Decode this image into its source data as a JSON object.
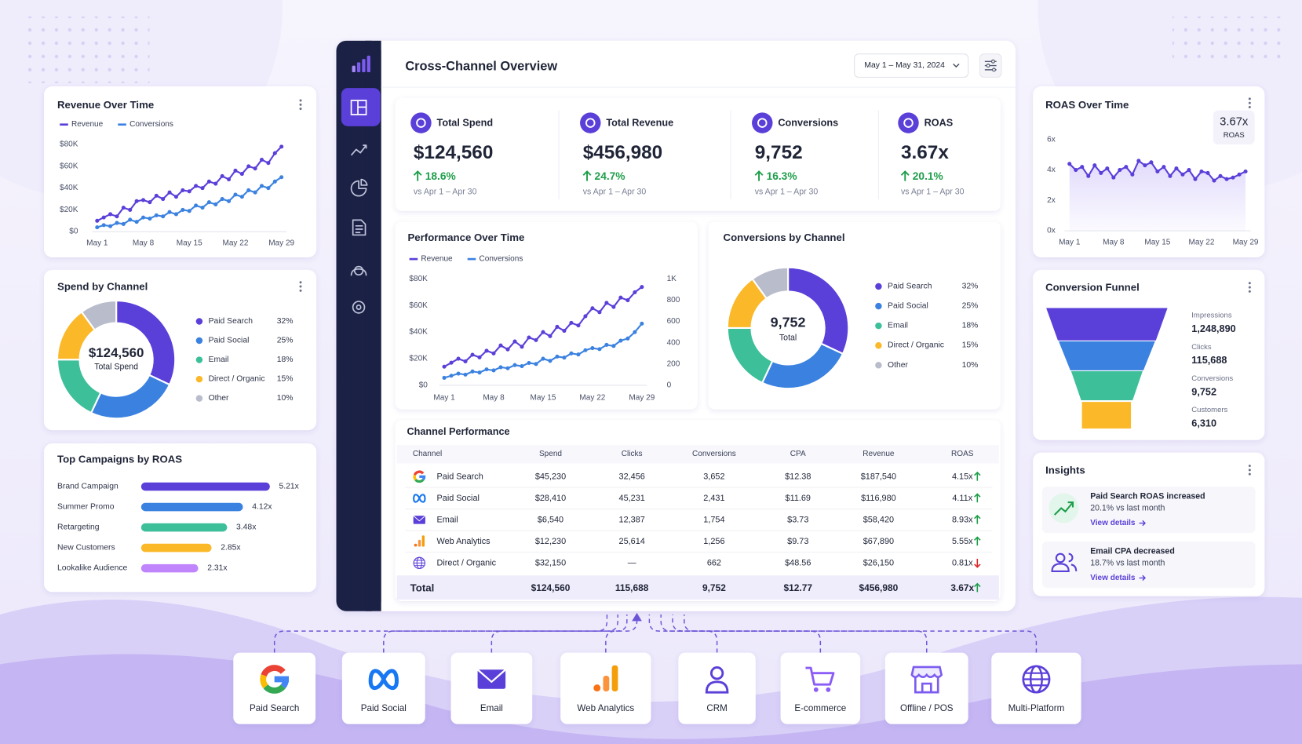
{
  "header": {
    "title": "Cross-Channel Overview",
    "date_range": "May 1 – May 31, 2024"
  },
  "kpis": [
    {
      "label": "Total Spend",
      "value": "$124,560",
      "change": "18.6%",
      "compare": "vs Apr 1 – Apr 30"
    },
    {
      "label": "Total Revenue",
      "value": "$456,980",
      "change": "24.7%",
      "compare": "vs Apr 1 – Apr 30"
    },
    {
      "label": "Conversions",
      "value": "9,752",
      "change": "16.3%",
      "compare": "vs Apr 1 – Apr 30"
    },
    {
      "label": "ROAS",
      "value": "3.67x",
      "change": "20.1%",
      "compare": "vs Apr 1 – Apr 30"
    }
  ],
  "chart_data": [
    {
      "type": "line",
      "title": "Revenue Over Time",
      "categories": [
        "May 1",
        null,
        null,
        null,
        null,
        null,
        null,
        "May 8",
        null,
        null,
        null,
        null,
        null,
        null,
        "May 15",
        null,
        null,
        null,
        null,
        null,
        null,
        "May 22",
        null,
        null,
        null,
        null,
        null,
        null,
        "May 29"
      ],
      "series": [
        {
          "name": "Revenue",
          "color": "#5b3fd9",
          "values": [
            10000,
            13000,
            16000,
            14000,
            22000,
            20000,
            28000,
            29000,
            27000,
            33000,
            30000,
            36000,
            32000,
            38000,
            37000,
            42000,
            40000,
            46000,
            44000,
            51000,
            48000,
            56000,
            53000,
            60000,
            58000,
            66000,
            63000,
            72000,
            78000
          ]
        },
        {
          "name": "Conversions",
          "color": "#3b82e0",
          "values": [
            4000,
            6000,
            5000,
            8000,
            7000,
            11000,
            9000,
            13000,
            12000,
            15000,
            14000,
            18000,
            16000,
            20000,
            19000,
            24000,
            22000,
            27000,
            25000,
            30000,
            28000,
            34000,
            32000,
            38000,
            36000,
            42000,
            40000,
            46000,
            50000
          ]
        }
      ],
      "ylim": [
        0,
        80000
      ],
      "yticks": [
        {
          "value": 0,
          "label": "$0"
        },
        {
          "value": 20000,
          "label": "$20K"
        },
        {
          "value": 40000,
          "label": "$40K"
        },
        {
          "value": 60000,
          "label": "$60K"
        },
        {
          "value": 80000,
          "label": "$80K"
        }
      ],
      "grid": false
    },
    {
      "type": "donut",
      "title": "Spend by Channel",
      "center_value": "$124,560",
      "center_label": "Total Spend",
      "categories": [
        "Paid Search",
        "Paid Social",
        "Email",
        "Direct / Organic",
        "Other"
      ],
      "values": [
        32,
        25,
        18,
        15,
        10
      ],
      "value_labels": [
        "32%",
        "25%",
        "18%",
        "15%",
        "10%"
      ],
      "colors": [
        "#5b3fd9",
        "#3b82e0",
        "#3dbf9a",
        "#fbb829",
        "#b9bccb"
      ]
    },
    {
      "type": "hbar",
      "title": "Top Campaigns by ROAS",
      "categories": [
        "Brand Campaign",
        "Summer Promo",
        "Retargeting",
        "New Customers",
        "Lookalike Audience"
      ],
      "values": [
        5.21,
        4.12,
        3.48,
        2.85,
        2.31
      ],
      "value_labels": [
        "5.21x",
        "4.12x",
        "3.48x",
        "2.85x",
        "2.31x"
      ],
      "colors": [
        "#5b3fd9",
        "#3b82e0",
        "#3dbf9a",
        "#fbb829",
        "#c084fc"
      ]
    },
    {
      "type": "line",
      "title": "Performance Over Time",
      "categories": [
        "May 1",
        null,
        null,
        null,
        null,
        null,
        null,
        "May 8",
        null,
        null,
        null,
        null,
        null,
        null,
        "May 15",
        null,
        null,
        null,
        null,
        null,
        null,
        "May 22",
        null,
        null,
        null,
        null,
        null,
        null,
        "May 29"
      ],
      "series": [
        {
          "name": "Revenue",
          "color": "#5b3fd9",
          "values": [
            14000,
            17000,
            20000,
            18000,
            23000,
            21000,
            26000,
            24000,
            30000,
            27000,
            33000,
            29000,
            36000,
            34000,
            40000,
            37000,
            44000,
            41000,
            47000,
            45000,
            52000,
            58000,
            55000,
            62000,
            59000,
            66000,
            64000,
            70000,
            74000
          ]
        },
        {
          "name": "Conversions",
          "color": "#3b82e0",
          "axis": "y2",
          "values": [
            70,
            90,
            110,
            100,
            130,
            120,
            150,
            140,
            170,
            160,
            190,
            180,
            210,
            200,
            250,
            230,
            270,
            260,
            300,
            290,
            330,
            350,
            340,
            380,
            370,
            420,
            440,
            500,
            580
          ]
        }
      ],
      "ylim": [
        0,
        80000
      ],
      "yticks": [
        {
          "value": 0,
          "label": "$0"
        },
        {
          "value": 20000,
          "label": "$20K"
        },
        {
          "value": 40000,
          "label": "$40K"
        },
        {
          "value": 60000,
          "label": "$60K"
        },
        {
          "value": 80000,
          "label": "$80K"
        }
      ],
      "y2lim": [
        0,
        1000
      ],
      "y2ticks": [
        0,
        200,
        400,
        600,
        800,
        {
          "value": 1000,
          "label": "1K"
        }
      ],
      "grid": false
    },
    {
      "type": "donut",
      "title": "Conversions by Channel",
      "center_value": "9,752",
      "center_label": "Total",
      "categories": [
        "Paid Search",
        "Paid Social",
        "Email",
        "Direct / Organic",
        "Other"
      ],
      "values": [
        32,
        25,
        18,
        15,
        10
      ],
      "value_labels": [
        "32%",
        "25%",
        "18%",
        "15%",
        "10%"
      ],
      "colors": [
        "#5b3fd9",
        "#3b82e0",
        "#3dbf9a",
        "#fbb829",
        "#b9bccb"
      ]
    },
    {
      "type": "area",
      "title": "ROAS Over Time",
      "badge": {
        "value": "3.67x",
        "label": "ROAS"
      },
      "categories": [
        "May 1",
        null,
        null,
        null,
        null,
        null,
        null,
        "May 8",
        null,
        null,
        null,
        null,
        null,
        null,
        "May 15",
        null,
        null,
        null,
        null,
        null,
        null,
        "May 22",
        null,
        null,
        null,
        null,
        null,
        null,
        "May 29"
      ],
      "series": [
        {
          "name": "ROAS",
          "color": "#5b3fd9",
          "values": [
            4.4,
            4.0,
            4.2,
            3.6,
            4.3,
            3.8,
            4.1,
            3.5,
            4.0,
            4.2,
            3.7,
            4.6,
            4.3,
            4.5,
            3.9,
            4.2,
            3.6,
            4.1,
            3.7,
            4.0,
            3.4,
            3.9,
            3.8,
            3.3,
            3.6,
            3.4,
            3.5,
            3.7,
            3.9
          ]
        }
      ],
      "ylim": [
        0,
        6
      ],
      "yticks": [
        {
          "value": 0,
          "label": "0x"
        },
        {
          "value": 2,
          "label": "2x"
        },
        {
          "value": 4,
          "label": "4x"
        },
        {
          "value": 6,
          "label": "6x"
        }
      ],
      "grid": false
    }
  ],
  "channel_performance": {
    "title": "Channel Performance",
    "columns": [
      "Channel",
      "Spend",
      "Clicks",
      "Conversions",
      "CPA",
      "Revenue",
      "ROAS"
    ],
    "rows": [
      [
        "Paid Search",
        "$45,230",
        "32,456",
        "3,652",
        "$12.38",
        "$187,540",
        "4.15x"
      ],
      [
        "Paid Social",
        "$28,410",
        "45,231",
        "2,431",
        "$11.69",
        "$116,980",
        "4.11x"
      ],
      [
        "Email",
        "$6,540",
        "12,387",
        "1,754",
        "$3.73",
        "$58,420",
        "8.93x"
      ],
      [
        "Web Analytics",
        "$12,230",
        "25,614",
        "1,256",
        "$9.73",
        "$67,890",
        "5.55x"
      ],
      [
        "Direct / Organic",
        "$32,150",
        "—",
        "662",
        "$48.56",
        "$26,150",
        "0.81x"
      ]
    ],
    "trends": [
      "up",
      "up",
      "up",
      "up",
      "down"
    ],
    "total": [
      "Total",
      "$124,560",
      "115,688",
      "9,752",
      "$12.77",
      "$456,980",
      "3.67x"
    ],
    "total_trend": "up"
  },
  "funnel": {
    "title": "Conversion Funnel",
    "stages": [
      {
        "label": "Impressions",
        "value": "1,248,890"
      },
      {
        "label": "Clicks",
        "value": "115,688"
      },
      {
        "label": "Conversions",
        "value": "9,752"
      },
      {
        "label": "Customers",
        "value": "6,310"
      }
    ]
  },
  "insights": {
    "title": "Insights",
    "items": [
      {
        "title": "Paid Search ROAS increased",
        "detail": "20.1% vs last month",
        "link": "View details"
      },
      {
        "title": "Email CPA decreased",
        "detail": "18.7% vs last month",
        "link": "View details"
      }
    ]
  },
  "sources": [
    "Paid Search",
    "Paid Social",
    "Email",
    "Web Analytics",
    "CRM",
    "E-commerce",
    "Offline / POS",
    "Multi-Platform"
  ]
}
